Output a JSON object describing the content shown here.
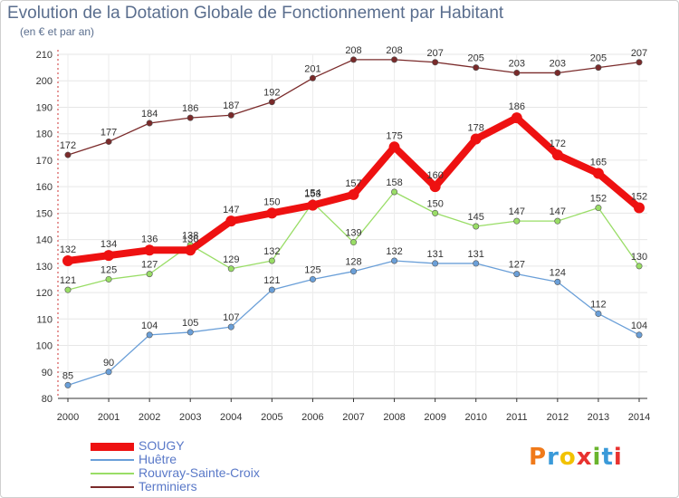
{
  "title": "Evolution de la Dotation Globale de Fonctionnement par Habitant",
  "subtitle": "(en € et par an)",
  "logo": {
    "text": "Proxiti",
    "colors": [
      "#f07a1a",
      "#3a9ad9",
      "#f2c200",
      "#e8322f",
      "#6ab42d",
      "#3a9ad9",
      "#e8322f"
    ]
  },
  "chart_data": {
    "type": "line",
    "title": "Evolution de la Dotation Globale de Fonctionnement par Habitant",
    "ylabel": "(en € et par an)",
    "xlabel": "",
    "ylim": [
      80,
      210
    ],
    "yticks": [
      80,
      90,
      100,
      110,
      120,
      130,
      140,
      150,
      160,
      170,
      180,
      190,
      200,
      210
    ],
    "x": [
      "2000",
      "2001",
      "2002",
      "2003",
      "2004",
      "2005",
      "2006",
      "2007",
      "2008",
      "2009",
      "2010",
      "2011",
      "2012",
      "2013",
      "2014"
    ],
    "grid": true,
    "series": [
      {
        "name": "Terminiers",
        "color": "#7a2a2a",
        "values": [
          172,
          177,
          184,
          186,
          187,
          192,
          201,
          208,
          208,
          207,
          205,
          203,
          203,
          205,
          207
        ]
      },
      {
        "name": "Rouvray-Sainte-Croix",
        "color": "#99dd66",
        "values": [
          121,
          125,
          127,
          138,
          129,
          132,
          154,
          139,
          158,
          150,
          145,
          147,
          147,
          152,
          130
        ]
      },
      {
        "name": "Huêtre",
        "color": "#6a9fd8",
        "values": [
          85,
          90,
          104,
          105,
          107,
          121,
          125,
          128,
          132,
          131,
          131,
          127,
          124,
          112,
          104
        ]
      },
      {
        "name": "SOUGY",
        "color": "#ee1111",
        "values": [
          132,
          134,
          136,
          136,
          147,
          150,
          153,
          157,
          175,
          160,
          178,
          186,
          172,
          165,
          152
        ]
      }
    ]
  },
  "legend": [
    {
      "label": "SOUGY",
      "color": "#ee1111"
    },
    {
      "label": "Huêtre",
      "color": "#6a9fd8"
    },
    {
      "label": "Rouvray-Sainte-Croix",
      "color": "#99dd66"
    },
    {
      "label": "Terminiers",
      "color": "#7a2a2a"
    }
  ]
}
